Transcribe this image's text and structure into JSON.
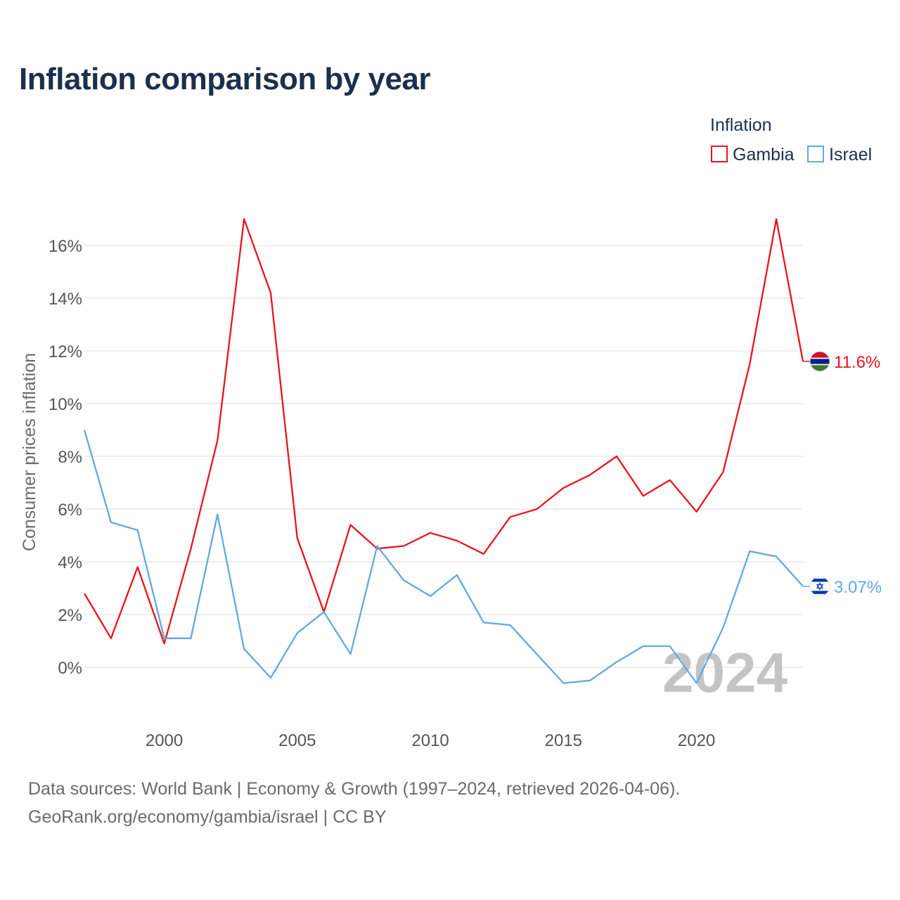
{
  "title": "Inflation comparison by year",
  "legend_title": "Inflation",
  "footer_line1": "Data sources: World Bank | Economy & Growth (1997–2024, retrieved 2026-04-06).",
  "footer_line2": "GeoRank.org/economy/gambia/israel | CC BY",
  "year_watermark": "2024",
  "colors": {
    "gambia": "#e8141b",
    "israel": "#64a7e4",
    "grid": "#e8e8e8",
    "axis_text": "#555555",
    "watermark": "#c4c4c4"
  },
  "chart_data": {
    "type": "line",
    "title": "Inflation comparison by year",
    "xlabel": "",
    "ylabel": "Consumer prices inflation",
    "x": [
      1997,
      1998,
      1999,
      2000,
      2001,
      2002,
      2003,
      2004,
      2005,
      2006,
      2007,
      2008,
      2009,
      2010,
      2011,
      2012,
      2013,
      2014,
      2015,
      2016,
      2017,
      2018,
      2019,
      2020,
      2021,
      2022,
      2023,
      2024
    ],
    "xlim": [
      1997,
      2024
    ],
    "ylim": [
      -2,
      17
    ],
    "x_ticks": [
      2000,
      2005,
      2010,
      2015,
      2020
    ],
    "y_ticks": [
      0,
      2,
      4,
      6,
      8,
      10,
      12,
      14,
      16
    ],
    "y_tick_labels": [
      "0%",
      "2%",
      "4%",
      "6%",
      "8%",
      "10%",
      "12%",
      "14%",
      "16%"
    ],
    "grid": true,
    "legend_position": "top-right",
    "series": [
      {
        "name": "Gambia",
        "color": "#e8141b",
        "end_label": "11.6%",
        "values": [
          2.8,
          1.1,
          3.8,
          0.9,
          4.5,
          8.6,
          17.0,
          14.2,
          4.9,
          2.1,
          5.4,
          4.5,
          4.6,
          5.1,
          4.8,
          4.3,
          5.7,
          6.0,
          6.8,
          7.3,
          8.0,
          6.5,
          7.1,
          5.9,
          7.4,
          11.5,
          17.0,
          11.6
        ]
      },
      {
        "name": "Israel",
        "color": "#64a7e4",
        "end_label": "3.07%",
        "values": [
          9.0,
          5.5,
          5.2,
          1.1,
          1.1,
          5.8,
          0.7,
          -0.4,
          1.3,
          2.1,
          0.5,
          4.6,
          3.3,
          2.7,
          3.5,
          1.7,
          1.6,
          0.5,
          -0.6,
          -0.5,
          0.2,
          0.8,
          0.8,
          -0.6,
          1.5,
          4.4,
          4.2,
          3.07
        ]
      }
    ]
  }
}
